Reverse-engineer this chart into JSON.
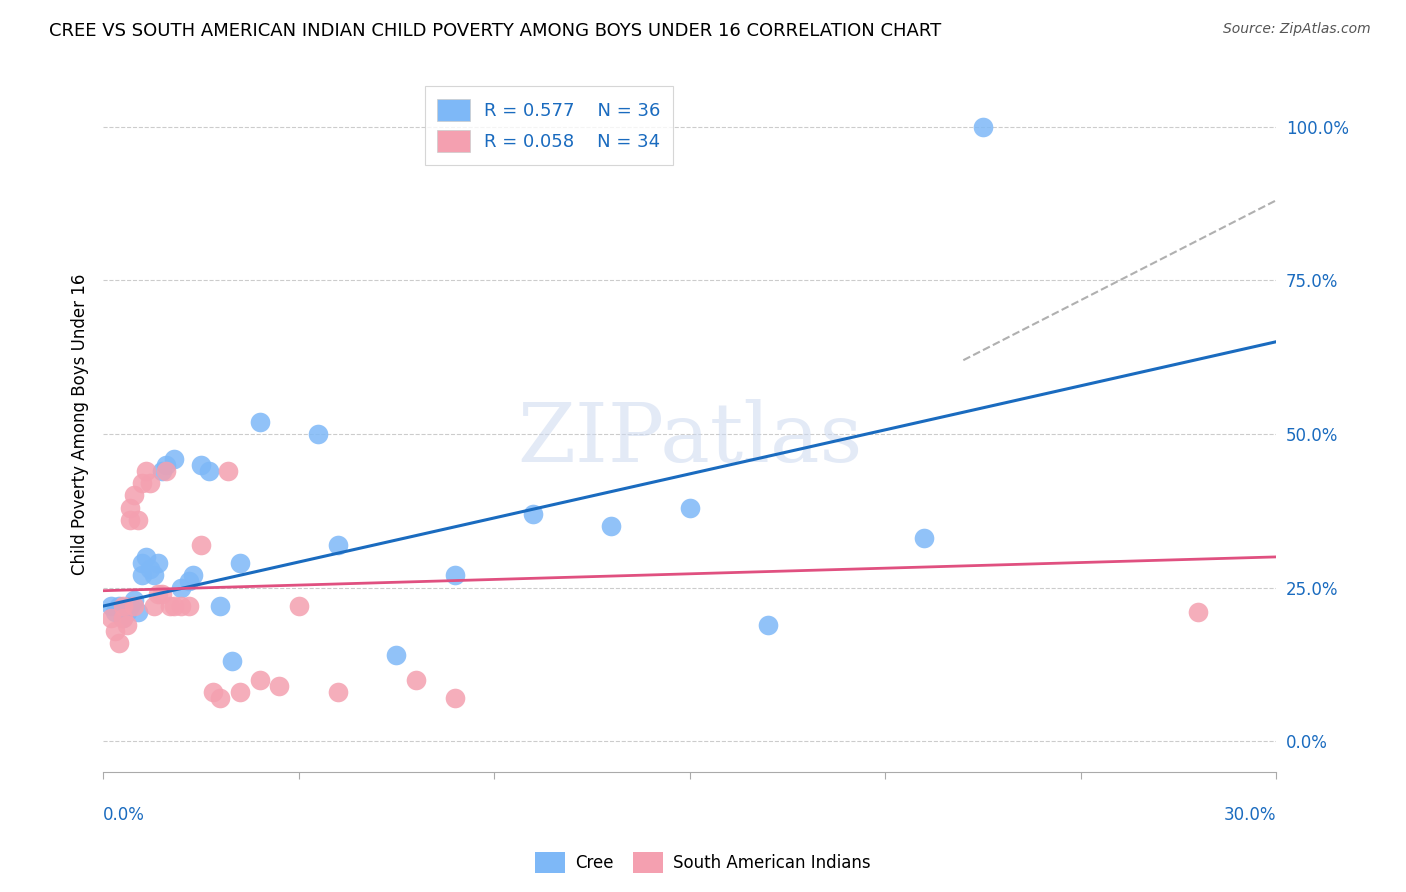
{
  "title": "CREE VS SOUTH AMERICAN INDIAN CHILD POVERTY AMONG BOYS UNDER 16 CORRELATION CHART",
  "source": "Source: ZipAtlas.com",
  "ylabel": "Child Poverty Among Boys Under 16",
  "ytick_labels": [
    "0.0%",
    "25.0%",
    "50.0%",
    "75.0%",
    "100.0%"
  ],
  "ytick_vals": [
    0.0,
    0.25,
    0.5,
    0.75,
    1.0
  ],
  "xlim": [
    0.0,
    0.3
  ],
  "ylim": [
    -0.05,
    1.08
  ],
  "cree_color": "#7eb8f7",
  "cree_line_color": "#1a6bbf",
  "sa_color": "#f4a0b0",
  "sa_line_color": "#e05080",
  "legend_r_cree": "0.577",
  "legend_n_cree": "36",
  "legend_r_sa": "0.058",
  "legend_n_sa": "34",
  "watermark_text": "ZIPatlas",
  "cree_line_x0": 0.0,
  "cree_line_y0": 0.22,
  "cree_line_x1": 0.3,
  "cree_line_y1": 0.65,
  "sa_line_x0": 0.0,
  "sa_line_y0": 0.245,
  "sa_line_x1": 0.3,
  "sa_line_y1": 0.3,
  "dash_line_x0": 0.22,
  "dash_line_y0": 0.62,
  "dash_line_x1": 0.3,
  "dash_line_y1": 0.88,
  "cree_x": [
    0.002,
    0.003,
    0.004,
    0.005,
    0.006,
    0.007,
    0.008,
    0.009,
    0.01,
    0.01,
    0.011,
    0.012,
    0.013,
    0.014,
    0.015,
    0.016,
    0.018,
    0.02,
    0.022,
    0.023,
    0.025,
    0.027,
    0.03,
    0.033,
    0.035,
    0.04,
    0.055,
    0.06,
    0.075,
    0.09,
    0.11,
    0.13,
    0.15,
    0.17,
    0.21,
    0.225
  ],
  "cree_y": [
    0.22,
    0.21,
    0.22,
    0.2,
    0.21,
    0.22,
    0.23,
    0.21,
    0.27,
    0.29,
    0.3,
    0.28,
    0.27,
    0.29,
    0.44,
    0.45,
    0.46,
    0.25,
    0.26,
    0.27,
    0.45,
    0.44,
    0.22,
    0.13,
    0.29,
    0.52,
    0.5,
    0.32,
    0.14,
    0.27,
    0.37,
    0.35,
    0.38,
    0.19,
    0.33,
    1.0
  ],
  "sa_x": [
    0.002,
    0.003,
    0.004,
    0.005,
    0.005,
    0.006,
    0.007,
    0.007,
    0.008,
    0.008,
    0.009,
    0.01,
    0.011,
    0.012,
    0.013,
    0.014,
    0.015,
    0.016,
    0.017,
    0.018,
    0.02,
    0.022,
    0.025,
    0.028,
    0.03,
    0.032,
    0.035,
    0.04,
    0.045,
    0.05,
    0.06,
    0.08,
    0.09,
    0.28
  ],
  "sa_y": [
    0.2,
    0.18,
    0.16,
    0.22,
    0.2,
    0.19,
    0.38,
    0.36,
    0.4,
    0.22,
    0.36,
    0.42,
    0.44,
    0.42,
    0.22,
    0.24,
    0.24,
    0.44,
    0.22,
    0.22,
    0.22,
    0.22,
    0.32,
    0.08,
    0.07,
    0.44,
    0.08,
    0.1,
    0.09,
    0.22,
    0.08,
    0.1,
    0.07,
    0.21
  ]
}
